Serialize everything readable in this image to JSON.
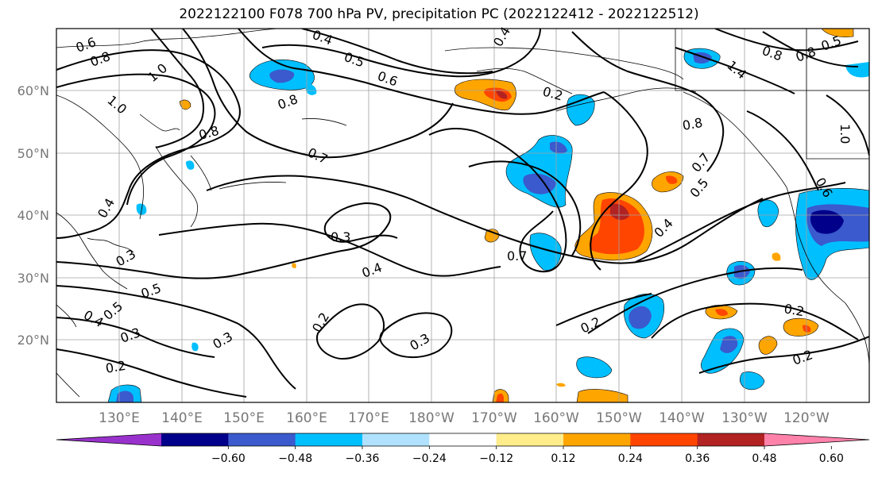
{
  "title": "2022122100 F078 700 hPa PV, precipitation PC (2022122412 - 2022122512)",
  "lat_labels": [
    "60°N",
    "50°N",
    "40°N",
    "30°N",
    "20°N"
  ],
  "lon_labels": [
    "130°E",
    "140°E",
    "150°E",
    "160°E",
    "170°E",
    "180°W",
    "170°W",
    "160°W",
    "150°W",
    "140°W",
    "130°W",
    "120°W"
  ],
  "colorbar": {
    "ticks": [
      "−0.60",
      "−0.48",
      "−0.36",
      "−0.24",
      "−0.12",
      "0.12",
      "0.24",
      "0.36",
      "0.48",
      "0.60"
    ],
    "colors": [
      "#9932cc",
      "#00008b",
      "#3a5acd",
      "#00bfff",
      "#b0e2ff",
      "#ffffff",
      "#ffec8b",
      "#ffa500",
      "#ff4500",
      "#b22222",
      "#ff82ab"
    ]
  },
  "pv_contour_labels": [
    "0.6",
    "0.8",
    "1.0",
    "1.0",
    "0.8",
    "0.7",
    "0.4",
    "0.5",
    "0.6",
    "0.8",
    "0.3",
    "0.4",
    "0.7",
    "0.4",
    "0.5",
    "0.3",
    "0.2",
    "0.3",
    "0.2",
    "0.3",
    "0.2",
    "0.4",
    "0.5",
    "0.7",
    "0.8",
    "0.4",
    "0.8",
    "1.4",
    "0.5",
    "0.8",
    "1.0",
    "0.6",
    "0.2",
    "0.2",
    "0.2",
    "0.3",
    "0.4",
    "0.5"
  ]
}
